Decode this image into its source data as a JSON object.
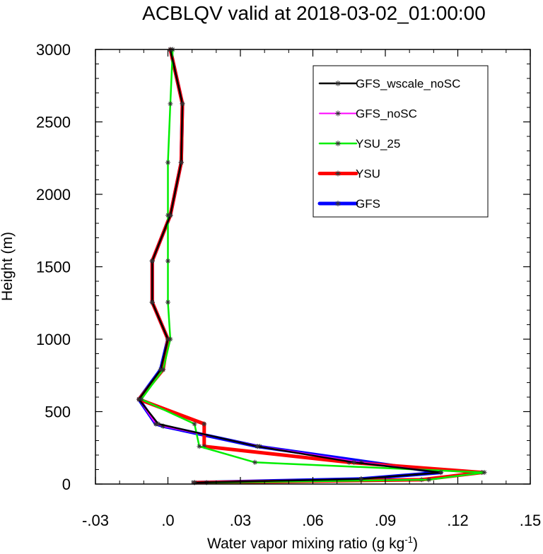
{
  "chart_data": {
    "type": "line",
    "title": "ACBLQV valid at 2018-03-02_01:00:00",
    "xlabel_main": "Water vapor mixing ratio (g kg",
    "xlabel_sup": "-1",
    "xlabel_end": ")",
    "ylabel": "Height (m)",
    "xlim": [
      -0.03,
      0.15
    ],
    "ylim": [
      0,
      3000
    ],
    "x_ticks": [
      -0.03,
      0.0,
      0.03,
      0.06,
      0.09,
      0.12,
      0.15
    ],
    "x_tick_labels": [
      "-.03",
      ".0",
      ".03",
      ".06",
      ".09",
      ".12",
      ".15"
    ],
    "y_ticks": [
      0,
      500,
      1000,
      1500,
      2000,
      2500,
      3000
    ],
    "y_tick_labels": [
      "0",
      "500",
      "1000",
      "1500",
      "2000",
      "2500",
      "3000"
    ],
    "legend_position": "top-right",
    "series": [
      {
        "name": "GFS",
        "color": "#0000ff",
        "width": 5,
        "points": [
          [
            0.011,
            10
          ],
          [
            0.08,
            35
          ],
          [
            0.113,
            80
          ],
          [
            0.037,
            260
          ],
          [
            -0.002,
            400
          ],
          [
            -0.005,
            415
          ],
          [
            -0.012,
            585
          ],
          [
            -0.003,
            790
          ],
          [
            0.0,
            1000
          ],
          [
            -0.0065,
            1255
          ],
          [
            -0.0065,
            1540
          ],
          [
            0.001,
            1855
          ],
          [
            0.0055,
            2220
          ],
          [
            0.006,
            2625
          ],
          [
            0.001,
            3000
          ]
        ]
      },
      {
        "name": "YSU",
        "color": "#ff0000",
        "width": 5,
        "points": [
          [
            0.011,
            10
          ],
          [
            0.105,
            30
          ],
          [
            0.13,
            80
          ],
          [
            0.075,
            150
          ],
          [
            0.015,
            260
          ],
          [
            0.015,
            415
          ],
          [
            -0.012,
            585
          ],
          [
            -0.002,
            790
          ],
          [
            0.0,
            1000
          ],
          [
            -0.0065,
            1255
          ],
          [
            -0.0065,
            1540
          ],
          [
            0.001,
            1855
          ],
          [
            0.0055,
            2220
          ],
          [
            0.006,
            2625
          ],
          [
            0.001,
            3000
          ]
        ]
      },
      {
        "name": "YSU_25",
        "color": "#00ee00",
        "width": 2.5,
        "points": [
          [
            0.016,
            10
          ],
          [
            0.108,
            30
          ],
          [
            0.131,
            80
          ],
          [
            0.036,
            150
          ],
          [
            0.013,
            260
          ],
          [
            0.011,
            415
          ],
          [
            -0.011,
            585
          ],
          [
            -0.002,
            790
          ],
          [
            0.001,
            1000
          ],
          [
            0.0,
            1255
          ],
          [
            0.0,
            1540
          ],
          [
            0.0,
            1855
          ],
          [
            0.0,
            2220
          ],
          [
            0.001,
            2625
          ],
          [
            0.002,
            3000
          ]
        ]
      },
      {
        "name": "GFS_noSC",
        "color": "#ff00ff",
        "width": 2,
        "points": [
          [
            0.011,
            10
          ],
          [
            0.08,
            35
          ],
          [
            0.113,
            80
          ],
          [
            0.08,
            150
          ],
          [
            0.038,
            260
          ],
          [
            -0.002,
            400
          ],
          [
            -0.005,
            415
          ],
          [
            -0.012,
            585
          ],
          [
            -0.003,
            790
          ],
          [
            0.0,
            1000
          ],
          [
            -0.0065,
            1255
          ],
          [
            -0.0065,
            1540
          ],
          [
            0.001,
            1855
          ],
          [
            0.0055,
            2220
          ],
          [
            0.006,
            2625
          ],
          [
            0.001,
            3000
          ]
        ]
      },
      {
        "name": "GFS_wscale_noSC",
        "color": "#000000",
        "width": 2.5,
        "points": [
          [
            0.011,
            10
          ],
          [
            0.08,
            35
          ],
          [
            0.113,
            80
          ],
          [
            0.077,
            150
          ],
          [
            0.037,
            260
          ],
          [
            -0.004,
            415
          ],
          [
            -0.012,
            585
          ],
          [
            -0.003,
            790
          ],
          [
            0.0,
            1000
          ],
          [
            -0.0065,
            1255
          ],
          [
            -0.0065,
            1540
          ],
          [
            0.001,
            1855
          ],
          [
            0.0055,
            2220
          ],
          [
            0.006,
            2625
          ],
          [
            0.001,
            3000
          ]
        ]
      }
    ],
    "legend": [
      {
        "name": "GFS_wscale_noSC",
        "color": "#000000",
        "width": 2.5
      },
      {
        "name": "GFS_noSC",
        "color": "#ff00ff",
        "width": 2
      },
      {
        "name": "YSU_25",
        "color": "#00ee00",
        "width": 2.5
      },
      {
        "name": "YSU",
        "color": "#ff0000",
        "width": 5
      },
      {
        "name": "GFS",
        "color": "#0000ff",
        "width": 5
      }
    ]
  }
}
